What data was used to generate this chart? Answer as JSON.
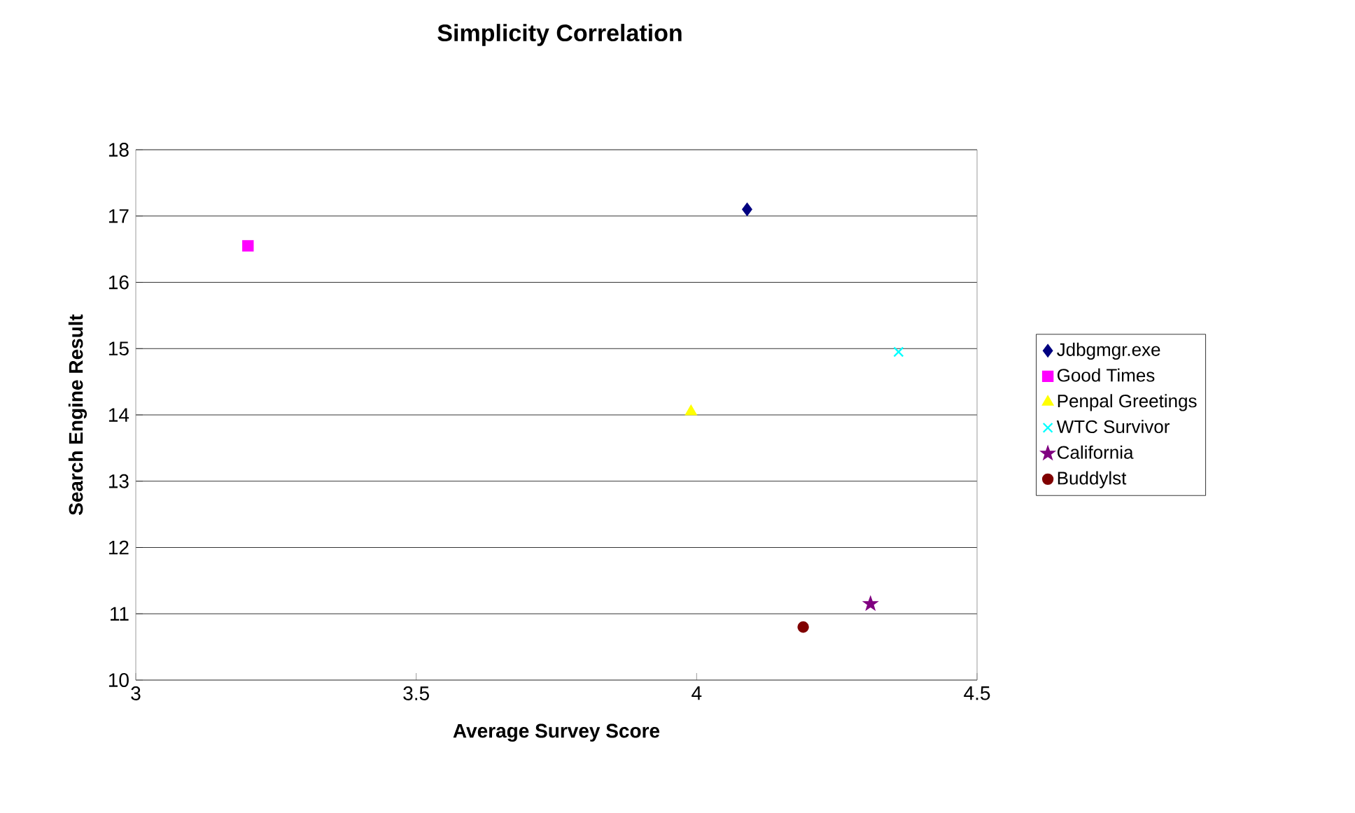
{
  "chart_data": {
    "type": "scatter",
    "title": "Simplicity Correlation",
    "xlabel": "Average Survey Score",
    "ylabel": "Search Engine Result",
    "xlim": [
      3,
      4.5
    ],
    "xticks": [
      3,
      3.5,
      4,
      4.5
    ],
    "ylim": [
      10,
      18
    ],
    "yticks": [
      10,
      11,
      12,
      13,
      14,
      15,
      16,
      17,
      18
    ],
    "grid": "y",
    "legend": "right",
    "series": [
      {
        "name": "Jdbgmgr.exe",
        "color": "#000080",
        "marker": "diamond",
        "x": [
          4.09
        ],
        "values": [
          17.1
        ]
      },
      {
        "name": "Good Times",
        "color": "#ff00ff",
        "marker": "square",
        "x": [
          3.2
        ],
        "values": [
          16.55
        ]
      },
      {
        "name": "Penpal Greetings",
        "color": "#ffff00",
        "marker": "triangle",
        "x": [
          3.99
        ],
        "values": [
          14.05
        ]
      },
      {
        "name": "WTC Survivor",
        "color": "#00ffff",
        "marker": "cross",
        "x": [
          4.36
        ],
        "values": [
          14.95
        ]
      },
      {
        "name": "California",
        "color": "#800080",
        "marker": "star",
        "x": [
          4.31
        ],
        "values": [
          11.15
        ]
      },
      {
        "name": "Buddylst",
        "color": "#800000",
        "marker": "circle",
        "x": [
          4.19
        ],
        "values": [
          10.8
        ]
      }
    ]
  }
}
